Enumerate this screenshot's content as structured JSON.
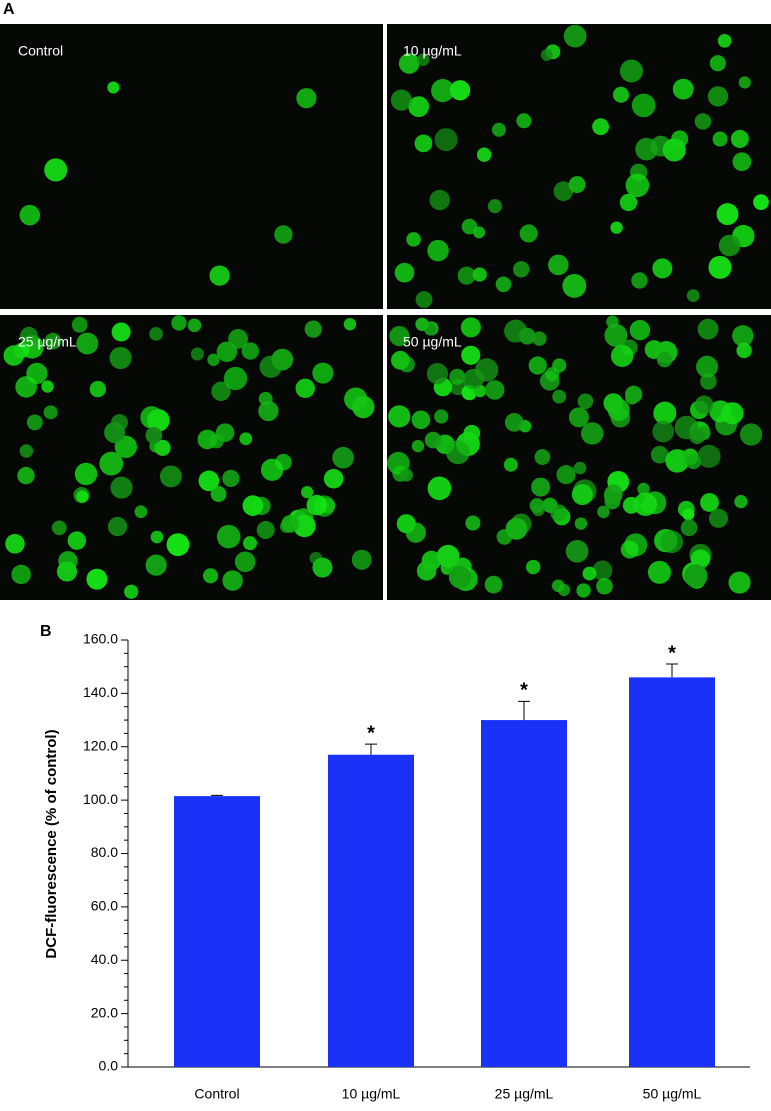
{
  "panel_a": {
    "label": "A",
    "images": [
      {
        "label": "Control"
      },
      {
        "label": "10 µg/mL"
      },
      {
        "label": "25 µg/mL"
      },
      {
        "label": "50 µg/mL"
      }
    ]
  },
  "chart_data": {
    "type": "bar",
    "panel_label": "B",
    "y_label": "DCF-fluorescence (% of control)",
    "categories": [
      "Control",
      "10 µg/mL",
      "25 µg/mL",
      "50 µg/mL"
    ],
    "values": [
      101.5,
      117,
      130,
      146
    ],
    "errors": [
      0.3,
      4,
      7,
      5
    ],
    "significance": [
      null,
      "*",
      "*",
      "*"
    ],
    "color": "#1a32f8",
    "ylim": [
      0,
      160
    ],
    "yticks": [
      {
        "value": 0,
        "label": "0.0"
      },
      {
        "value": 20,
        "label": "20.0"
      },
      {
        "value": 40,
        "label": "40.0"
      },
      {
        "value": 60,
        "label": "60.0"
      },
      {
        "value": 80,
        "label": "80.0"
      },
      {
        "value": 100,
        "label": "100.0"
      },
      {
        "value": 120,
        "label": "120.0"
      },
      {
        "value": 140,
        "label": "140.0"
      },
      {
        "value": 160,
        "label": "160.0"
      }
    ],
    "minor_yticks": [
      5,
      10,
      15,
      25,
      30,
      35,
      45,
      50,
      55,
      65,
      70,
      75,
      85,
      90,
      95,
      105,
      110,
      115,
      125,
      130,
      135,
      145,
      150,
      155
    ]
  }
}
